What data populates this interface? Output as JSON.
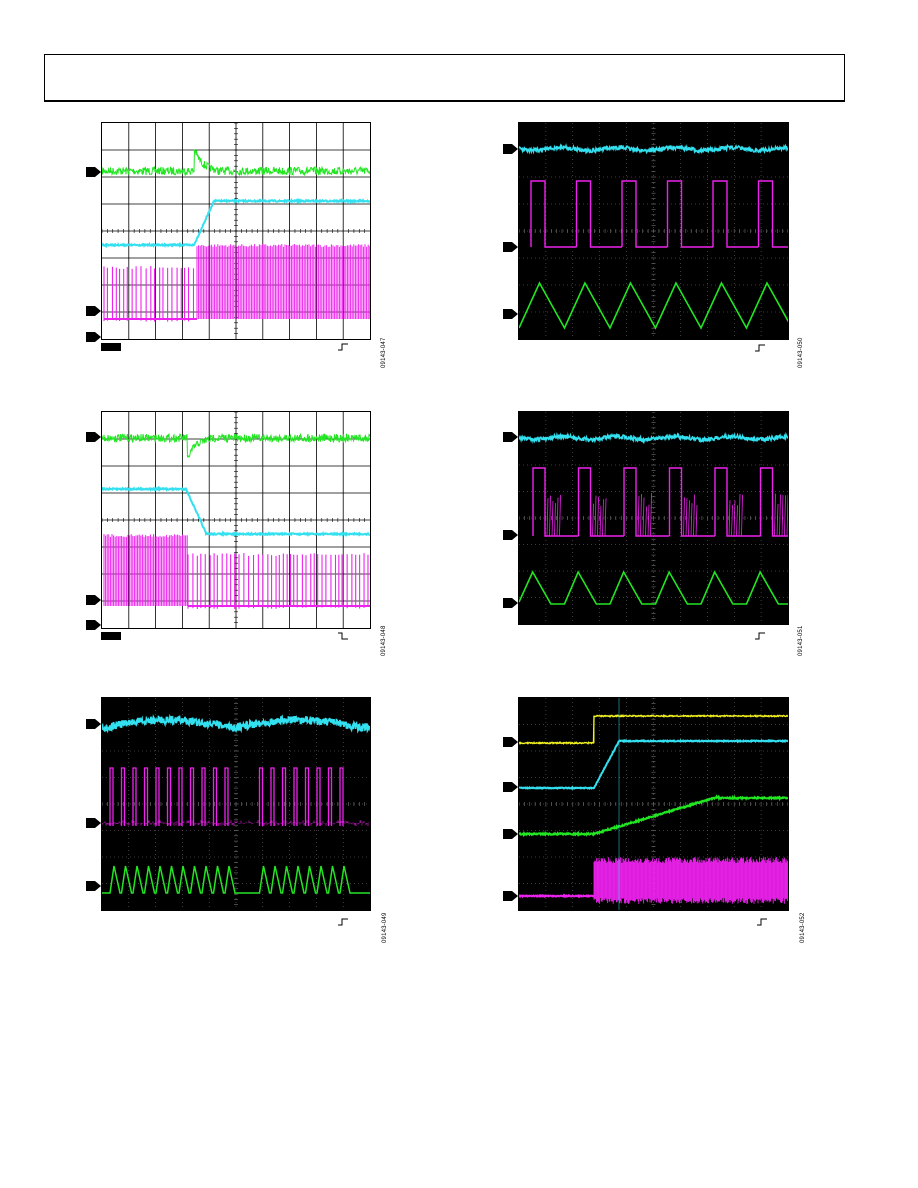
{
  "page": {
    "background": "#ffffff"
  },
  "colors": {
    "green": "#22e622",
    "cyan": "#33e0f0",
    "magenta": "#ee22ee",
    "yellow": "#f0f020"
  },
  "figures": [
    {
      "id": "fig-47",
      "label": "09143-047",
      "style": "light",
      "trigger": "rising-edge-icon"
    },
    {
      "id": "fig-50",
      "label": "09143-050",
      "style": "dark",
      "trigger": "rising-edge-icon"
    },
    {
      "id": "fig-48",
      "label": "09143-048",
      "style": "light",
      "trigger": "falling-edge-icon"
    },
    {
      "id": "fig-51",
      "label": "09143-051",
      "style": "dark",
      "trigger": "rising-edge-icon"
    },
    {
      "id": "fig-49",
      "label": "09143-049",
      "style": "dark",
      "trigger": "rising-edge-icon"
    },
    {
      "id": "fig-52",
      "label": "09143-052",
      "style": "dark",
      "trigger": "rising-edge-icon"
    }
  ]
}
